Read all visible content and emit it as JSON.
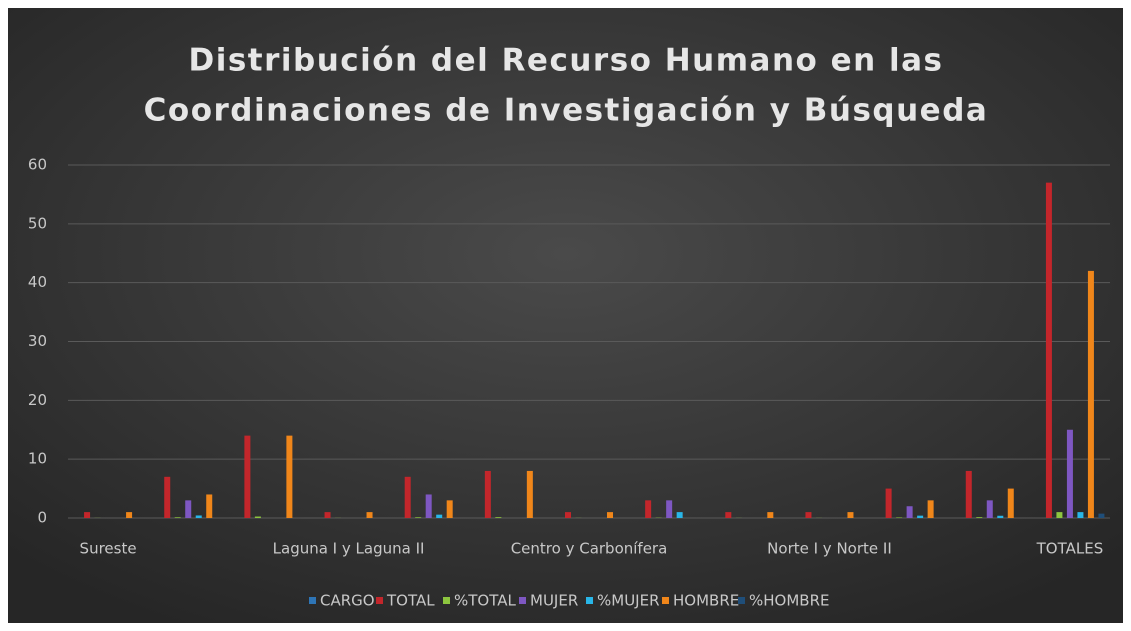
{
  "chart_data": {
    "type": "bar",
    "title": [
      "Distribución del Recurso Humano en las",
      "Coordinaciones de Investigación y Búsqueda"
    ],
    "categories": [
      "Sureste",
      null,
      null,
      "Laguna I y Laguna II",
      null,
      null,
      "Centro y Carbonífera",
      null,
      null,
      "Norte I y Norte II",
      null,
      null,
      "TOTALES"
    ],
    "series": [
      {
        "name": "CARGO",
        "color": "#2e75b6",
        "values": [
          0,
          0,
          0,
          0,
          0,
          0,
          0,
          0,
          0,
          0,
          0,
          0,
          0
        ]
      },
      {
        "name": "TOTAL",
        "color": "#c3262b",
        "values": [
          1,
          7,
          14,
          1,
          7,
          8,
          1,
          3,
          1,
          1,
          5,
          8,
          57
        ]
      },
      {
        "name": "%TOTAL",
        "color": "#8dc63f",
        "values": [
          0.02,
          0.12,
          0.25,
          0.02,
          0.12,
          0.14,
          0.02,
          0.05,
          0.02,
          0.02,
          0.09,
          0.14,
          1
        ]
      },
      {
        "name": "MUJER",
        "color": "#7e57c2",
        "values": [
          0,
          3,
          0,
          0,
          4,
          0,
          0,
          3,
          0,
          0,
          2,
          3,
          15
        ]
      },
      {
        "name": "%MUJER",
        "color": "#29b6e8",
        "values": [
          0,
          0.43,
          0,
          0,
          0.57,
          0,
          0,
          1,
          0,
          0,
          0.4,
          0.38,
          1
        ]
      },
      {
        "name": "HOMBRE",
        "color": "#f0861a",
        "values": [
          1,
          4,
          14,
          1,
          3,
          8,
          1,
          0,
          1,
          1,
          3,
          5,
          42
        ]
      },
      {
        "name": "%HOMBRE",
        "color": "#1f4e79",
        "values": [
          0,
          0,
          0,
          0,
          0,
          0,
          0,
          0,
          0,
          0,
          0,
          0,
          0.74
        ]
      }
    ],
    "ylim": [
      0,
      60
    ],
    "yticks": [
      0,
      10,
      20,
      30,
      40,
      50,
      60
    ],
    "grid": true,
    "legend": "bottom"
  }
}
